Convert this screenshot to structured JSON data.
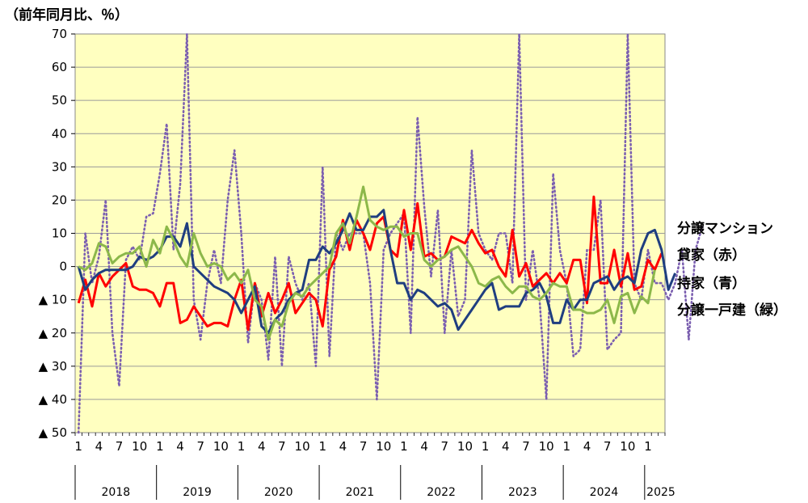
{
  "unit_label": "（前年同月比、％）",
  "chart_data": {
    "type": "line",
    "ylim": [
      -50,
      70
    ],
    "y_ticks": [
      {
        "value": 70,
        "label": "70"
      },
      {
        "value": 60,
        "label": "60"
      },
      {
        "value": 50,
        "label": "50"
      },
      {
        "value": 40,
        "label": "40"
      },
      {
        "value": 30,
        "label": "30"
      },
      {
        "value": 20,
        "label": "20"
      },
      {
        "value": 10,
        "label": "10"
      },
      {
        "value": 0,
        "label": "0"
      },
      {
        "value": -10,
        "label": "▲ 10"
      },
      {
        "value": -20,
        "label": "▲ 20"
      },
      {
        "value": -30,
        "label": "▲ 30"
      },
      {
        "value": -40,
        "label": "▲ 40"
      },
      {
        "value": -50,
        "label": "▲ 50"
      }
    ],
    "x_month_labels": [
      "1",
      "4",
      "7",
      "10",
      "1",
      "4",
      "7",
      "10",
      "1",
      "4",
      "7",
      "10",
      "1",
      "4",
      "7",
      "10",
      "1",
      "4",
      "7",
      "10",
      "1",
      "4",
      "7",
      "10",
      "1",
      "4",
      "7",
      "10",
      "1"
    ],
    "years": [
      "2018",
      "2019",
      "2020",
      "2021",
      "2022",
      "2023",
      "2024",
      "2025"
    ],
    "grid": true,
    "background": "#ffffc0",
    "series": [
      {
        "name": "分譲マンション",
        "color": "#7b5fb0",
        "style": "dotted",
        "values": [
          -50,
          10,
          -5,
          3,
          20,
          -20,
          -36,
          2,
          6,
          2,
          15,
          16,
          28,
          43,
          5,
          25,
          70,
          -10,
          -22,
          -5,
          5,
          -5,
          20,
          35,
          10,
          -23,
          -5,
          -10,
          -28,
          3,
          -30,
          3,
          -5,
          -10,
          -5,
          -30,
          30,
          -27,
          10,
          5,
          10,
          10,
          10,
          -5,
          -40,
          5,
          10,
          13,
          16,
          -20,
          45,
          18,
          -3,
          17,
          -20,
          5,
          -15,
          -10,
          35,
          10,
          5,
          2,
          10,
          10,
          -5,
          70,
          -10,
          5,
          -10,
          -40,
          28,
          5,
          -5,
          -27,
          -25,
          5,
          5,
          20,
          -25,
          -22,
          -20,
          70,
          -5,
          -10,
          5,
          -5,
          -5,
          -10,
          -5,
          5,
          -22,
          5,
          12
        ]
      },
      {
        "name": "貸家（赤）",
        "color": "#ff0000",
        "style": "solid",
        "values": [
          -11,
          -4,
          -12,
          -2,
          -6,
          -3,
          -1,
          1,
          -6,
          -7,
          -7,
          -8,
          -12,
          -5,
          -5,
          -17,
          -16,
          -12,
          -15,
          -18,
          -17,
          -17,
          -18,
          -10,
          -4,
          -19,
          -5,
          -15,
          -8,
          -14,
          -10,
          -5,
          -14,
          -11,
          -8,
          -10,
          -18,
          -1,
          3,
          14,
          5,
          14,
          10,
          5,
          13,
          15,
          5,
          3,
          17,
          5,
          19,
          3,
          4,
          2,
          3,
          9,
          8,
          7,
          11,
          7,
          4,
          5,
          0,
          -3,
          11,
          -3,
          1,
          -6,
          -4,
          -2,
          -5,
          -2,
          -5,
          2,
          2,
          -11,
          21,
          -5,
          -5,
          5,
          -6,
          4,
          -7,
          -6,
          2,
          -1,
          4
        ]
      },
      {
        "name": "持家（青）",
        "color": "#1f3e80",
        "style": "solid",
        "values": [
          0,
          -7,
          -4,
          -2,
          -1,
          -1,
          -1,
          -1,
          0,
          3,
          2,
          3,
          5,
          9,
          9,
          6,
          13,
          0,
          -2,
          -4,
          -6,
          -7,
          -8,
          -10,
          -14,
          -10,
          -6,
          -18,
          -20,
          -16,
          -14,
          -10,
          -8,
          -7,
          2,
          2,
          6,
          4,
          7,
          11,
          16,
          11,
          11,
          15,
          15,
          17,
          5,
          -5,
          -5,
          -10,
          -7,
          -8,
          -10,
          -12,
          -11,
          -13,
          -19,
          -16,
          -13,
          -10,
          -7,
          -5,
          -13,
          -12,
          -12,
          -12,
          -8,
          -7,
          -5,
          -9,
          -17,
          -17,
          -10,
          -13,
          -10,
          -10,
          -5,
          -4,
          -3,
          -7,
          -4,
          -3,
          -5,
          5,
          10,
          11,
          5,
          -7,
          -2
        ]
      },
      {
        "name": "分譲一戸建（緑）",
        "color": "#8cb84a",
        "style": "solid",
        "values": [
          0,
          -1,
          1,
          7,
          6,
          1,
          3,
          4,
          4,
          6,
          0,
          8,
          4,
          12,
          8,
          3,
          0,
          10,
          4,
          0,
          1,
          0,
          -4,
          -2,
          -5,
          -1,
          -10,
          -12,
          -22,
          -16,
          -18,
          -11,
          -8,
          -9,
          -6,
          -4,
          -2,
          0,
          10,
          13,
          7,
          15,
          24,
          14,
          12,
          11,
          12,
          12,
          9,
          10,
          10,
          2,
          0,
          2,
          3,
          5,
          6,
          3,
          0,
          -5,
          -6,
          -4,
          -3,
          -6,
          -8,
          -6,
          -6,
          -9,
          -10,
          -8,
          -5,
          -6,
          -6,
          -13,
          -13,
          -14,
          -14,
          -13,
          -10,
          -17,
          -9,
          -8,
          -14,
          -9,
          -11,
          -1
        ]
      }
    ],
    "legend": [
      {
        "label": "分譲マンション",
        "value": 12
      },
      {
        "label": "貸家（赤）",
        "value": 4
      },
      {
        "label": "持家（青）",
        "value": -4.5
      },
      {
        "label": "分譲一戸建（緑）",
        "value": -12.5
      }
    ]
  }
}
